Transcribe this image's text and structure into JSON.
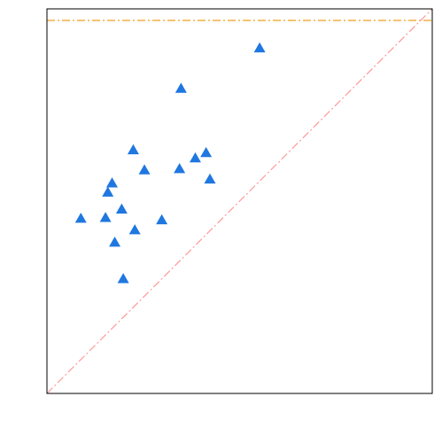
{
  "chart_data": {
    "type": "scatter",
    "title": "",
    "xlabel": "",
    "ylabel": "",
    "xlim": [
      0,
      1
    ],
    "ylim": [
      0,
      1
    ],
    "grid": false,
    "legend": "none",
    "marker": "triangle",
    "colors": {
      "points": "#1f77e0",
      "diagonal": "#ff9999",
      "ceiling": "#f0a830",
      "frame": "#000000"
    },
    "series": [
      {
        "x": [
          0.552,
          0.348,
          0.224,
          0.385,
          0.413,
          0.344,
          0.253,
          0.423,
          0.169,
          0.158,
          0.194,
          0.152,
          0.298,
          0.088,
          0.228,
          0.176,
          0.198
        ],
        "y": [
          0.898,
          0.793,
          0.633,
          0.612,
          0.626,
          0.584,
          0.581,
          0.557,
          0.547,
          0.523,
          0.479,
          0.457,
          0.451,
          0.455,
          0.425,
          0.393,
          0.298
        ]
      }
    ],
    "reference_lines": [
      {
        "kind": "diagonal",
        "from": [
          0,
          0
        ],
        "to": [
          1,
          1
        ]
      },
      {
        "kind": "horizontal",
        "y": 0.97
      }
    ]
  }
}
